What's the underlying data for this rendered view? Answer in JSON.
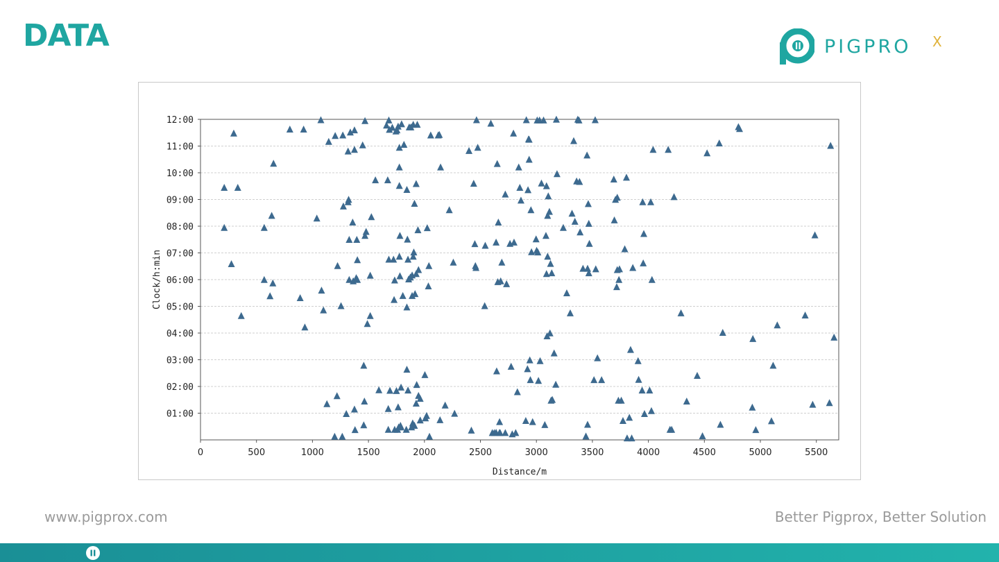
{
  "header": {
    "title": "DATA",
    "logo_text": "PIGPRO",
    "logo_superscript": "X"
  },
  "footer": {
    "website": "www.pigprox.com",
    "slogan": "Better Pigprox, Better Solution"
  },
  "colors": {
    "accent": "#1fa6a1",
    "marker": "#3d6a8f",
    "gold": "#e0b23a",
    "footer_text": "#9a9a9a"
  },
  "icons": [
    "pigprox-logo-icon",
    "pigprox-footer-icon"
  ],
  "chart_data": {
    "type": "scatter",
    "marker": "triangle",
    "xlabel": "Distance/m",
    "ylabel": "Clock/h:min",
    "xlim": [
      0,
      5700
    ],
    "ylim": [
      0,
      12
    ],
    "xticks": [
      0,
      500,
      1000,
      1500,
      2000,
      2500,
      3000,
      3500,
      4000,
      4500,
      5000,
      5500
    ],
    "yticks": [
      1,
      2,
      3,
      4,
      5,
      6,
      7,
      8,
      9,
      10,
      11,
      12
    ],
    "ytick_labels": [
      "01:00",
      "02:00",
      "03:00",
      "04:00",
      "05:00",
      "06:00",
      "07:00",
      "08:00",
      "09:00",
      "10:00",
      "11:00",
      "12:00"
    ],
    "grid_y": true,
    "grid_x": false,
    "y_unit": "hours",
    "points": [
      [
        212,
        9.43
      ],
      [
        212,
        7.93
      ],
      [
        276,
        6.57
      ],
      [
        297,
        11.46
      ],
      [
        333,
        9.43
      ],
      [
        364,
        4.63
      ],
      [
        569,
        5.98
      ],
      [
        569,
        7.93
      ],
      [
        621,
        5.37
      ],
      [
        636,
        8.38
      ],
      [
        646,
        5.85
      ],
      [
        652,
        10.33
      ],
      [
        798,
        11.61
      ],
      [
        890,
        5.3
      ],
      [
        921,
        11.61
      ],
      [
        932,
        4.2
      ],
      [
        1039,
        8.28
      ],
      [
        1075,
        11.96
      ],
      [
        1081,
        5.58
      ],
      [
        1098,
        4.84
      ],
      [
        1129,
        1.33
      ],
      [
        1145,
        11.15
      ],
      [
        1198,
        0.11
      ],
      [
        1203,
        11.37
      ],
      [
        1219,
        1.63
      ],
      [
        1224,
        6.5
      ],
      [
        1255,
        5.0
      ],
      [
        1266,
        0.11
      ],
      [
        1271,
        11.39
      ],
      [
        1276,
        8.73
      ],
      [
        1302,
        0.96
      ],
      [
        1318,
        10.79
      ],
      [
        1318,
        8.89
      ],
      [
        1323,
        8.98
      ],
      [
        1328,
        7.48
      ],
      [
        1328,
        5.98
      ],
      [
        1338,
        11.5
      ],
      [
        1359,
        8.13
      ],
      [
        1364,
        5.93
      ],
      [
        1375,
        11.58
      ],
      [
        1375,
        10.85
      ],
      [
        1375,
        1.13
      ],
      [
        1380,
        0.36
      ],
      [
        1391,
        6.05
      ],
      [
        1396,
        7.48
      ],
      [
        1401,
        6.72
      ],
      [
        1401,
        5.98
      ],
      [
        1448,
        11.02
      ],
      [
        1458,
        2.77
      ],
      [
        1458,
        0.54
      ],
      [
        1464,
        1.43
      ],
      [
        1469,
        11.93
      ],
      [
        1469,
        7.63
      ],
      [
        1479,
        7.78
      ],
      [
        1490,
        4.33
      ],
      [
        1516,
        4.63
      ],
      [
        1516,
        6.14
      ],
      [
        1526,
        8.33
      ],
      [
        1562,
        9.71
      ],
      [
        1593,
        1.85
      ],
      [
        1661,
        11.76
      ],
      [
        1672,
        9.71
      ],
      [
        1677,
        0.37
      ],
      [
        1677,
        1.15
      ],
      [
        1682,
        11.95
      ],
      [
        1682,
        6.74
      ],
      [
        1687,
        11.6
      ],
      [
        1692,
        1.83
      ],
      [
        1713,
        11.68
      ],
      [
        1724,
        6.74
      ],
      [
        1729,
        5.23
      ],
      [
        1734,
        5.96
      ],
      [
        1734,
        0.37
      ],
      [
        1745,
        11.54
      ],
      [
        1750,
        1.82
      ],
      [
        1755,
        11.58
      ],
      [
        1760,
        0.37
      ],
      [
        1765,
        11.72
      ],
      [
        1765,
        1.21
      ],
      [
        1770,
        0.46
      ],
      [
        1776,
        6.85
      ],
      [
        1776,
        10.93
      ],
      [
        1776,
        9.5
      ],
      [
        1776,
        10.19
      ],
      [
        1781,
        7.63
      ],
      [
        1781,
        6.12
      ],
      [
        1786,
        0.52
      ],
      [
        1791,
        1.95
      ],
      [
        1791,
        0.46
      ],
      [
        1796,
        11.81
      ],
      [
        1807,
        5.38
      ],
      [
        1817,
        11.04
      ],
      [
        1838,
        0.37
      ],
      [
        1843,
        4.95
      ],
      [
        1843,
        2.62
      ],
      [
        1843,
        9.35
      ],
      [
        1848,
        7.49
      ],
      [
        1853,
        6.74
      ],
      [
        1853,
        1.84
      ],
      [
        1859,
        6.0
      ],
      [
        1864,
        11.69
      ],
      [
        1874,
        6.07
      ],
      [
        1879,
        11.69
      ],
      [
        1885,
        0.46
      ],
      [
        1890,
        5.38
      ],
      [
        1890,
        6.15
      ],
      [
        1895,
        0.61
      ],
      [
        1900,
        6.85
      ],
      [
        1900,
        11.79
      ],
      [
        1905,
        7.01
      ],
      [
        1911,
        0.52
      ],
      [
        1911,
        8.83
      ],
      [
        1916,
        5.45
      ],
      [
        1926,
        9.57
      ],
      [
        1926,
        6.2
      ],
      [
        1926,
        1.35
      ],
      [
        1931,
        2.05
      ],
      [
        1936,
        11.79
      ],
      [
        1942,
        7.84
      ],
      [
        1947,
        1.64
      ],
      [
        1947,
        6.35
      ],
      [
        1962,
        1.53
      ],
      [
        1962,
        0.72
      ],
      [
        2004,
        2.42
      ],
      [
        2009,
        0.8
      ],
      [
        2019,
        0.89
      ],
      [
        2025,
        7.92
      ],
      [
        2035,
        5.74
      ],
      [
        2040,
        6.5
      ],
      [
        2045,
        0.11
      ],
      [
        2056,
        11.39
      ],
      [
        2123,
        11.39
      ],
      [
        2133,
        11.41
      ],
      [
        2139,
        0.73
      ],
      [
        2144,
        10.19
      ],
      [
        2185,
        1.28
      ],
      [
        2222,
        8.59
      ],
      [
        2258,
        6.63
      ],
      [
        2269,
        0.97
      ],
      [
        2398,
        10.81
      ],
      [
        2419,
        0.34
      ],
      [
        2440,
        9.58
      ],
      [
        2450,
        7.32
      ],
      [
        2455,
        6.5
      ],
      [
        2460,
        6.43
      ],
      [
        2465,
        11.96
      ],
      [
        2476,
        10.93
      ],
      [
        2538,
        5.0
      ],
      [
        2543,
        7.26
      ],
      [
        2593,
        11.83
      ],
      [
        2606,
        0.25
      ],
      [
        2624,
        0.25
      ],
      [
        2640,
        7.38
      ],
      [
        2640,
        0.26
      ],
      [
        2645,
        2.56
      ],
      [
        2650,
        10.32
      ],
      [
        2655,
        5.9
      ],
      [
        2660,
        8.13
      ],
      [
        2670,
        0.25
      ],
      [
        2671,
        0.66
      ],
      [
        2676,
        0.25
      ],
      [
        2681,
        5.93
      ],
      [
        2691,
        6.63
      ],
      [
        2722,
        0.25
      ],
      [
        2722,
        9.18
      ],
      [
        2733,
        5.82
      ],
      [
        2764,
        7.33
      ],
      [
        2774,
        2.73
      ],
      [
        2784,
        0.2
      ],
      [
        2795,
        11.46
      ],
      [
        2800,
        7.38
      ],
      [
        2815,
        0.25
      ],
      [
        2830,
        1.78
      ],
      [
        2842,
        10.19
      ],
      [
        2852,
        9.43
      ],
      [
        2862,
        8.95
      ],
      [
        2905,
        0.7
      ],
      [
        2910,
        11.96
      ],
      [
        2920,
        2.64
      ],
      [
        2925,
        9.34
      ],
      [
        2930,
        11.24
      ],
      [
        2935,
        11.23
      ],
      [
        2935,
        10.48
      ],
      [
        2941,
        2.97
      ],
      [
        2946,
        2.23
      ],
      [
        2951,
        8.59
      ],
      [
        2956,
        7.02
      ],
      [
        2966,
        0.66
      ],
      [
        2997,
        7.5
      ],
      [
        3002,
        7.07
      ],
      [
        3007,
        11.95
      ],
      [
        3013,
        7.01
      ],
      [
        3018,
        2.2
      ],
      [
        3028,
        11.95
      ],
      [
        3033,
        2.94
      ],
      [
        3045,
        9.59
      ],
      [
        3064,
        11.95
      ],
      [
        3075,
        0.55
      ],
      [
        3085,
        7.63
      ],
      [
        3090,
        9.49
      ],
      [
        3090,
        6.2
      ],
      [
        3095,
        3.87
      ],
      [
        3100,
        6.85
      ],
      [
        3100,
        8.38
      ],
      [
        3106,
        9.11
      ],
      [
        3116,
        8.53
      ],
      [
        3121,
        3.98
      ],
      [
        3126,
        6.58
      ],
      [
        3131,
        1.46
      ],
      [
        3137,
        6.23
      ],
      [
        3142,
        1.49
      ],
      [
        3158,
        3.23
      ],
      [
        3173,
        2.06
      ],
      [
        3178,
        11.98
      ],
      [
        3184,
        9.94
      ],
      [
        3240,
        7.93
      ],
      [
        3271,
        5.48
      ],
      [
        3302,
        4.73
      ],
      [
        3318,
        8.46
      ],
      [
        3333,
        11.18
      ],
      [
        3344,
        8.16
      ],
      [
        3359,
        9.67
      ],
      [
        3369,
        11.98
      ],
      [
        3380,
        11.95
      ],
      [
        3385,
        9.65
      ],
      [
        3390,
        7.76
      ],
      [
        3416,
        6.4
      ],
      [
        3442,
        0.12
      ],
      [
        3452,
        10.64
      ],
      [
        3457,
        6.4
      ],
      [
        3457,
        0.56
      ],
      [
        3463,
        8.82
      ],
      [
        3468,
        8.08
      ],
      [
        3468,
        6.23
      ],
      [
        3473,
        7.33
      ],
      [
        3514,
        2.23
      ],
      [
        3525,
        11.96
      ],
      [
        3530,
        6.38
      ],
      [
        3545,
        3.05
      ],
      [
        3582,
        2.23
      ],
      [
        3691,
        9.74
      ],
      [
        3696,
        8.21
      ],
      [
        3706,
        8.98
      ],
      [
        3717,
        5.71
      ],
      [
        3722,
        9.06
      ],
      [
        3722,
        6.35
      ],
      [
        3732,
        1.46
      ],
      [
        3737,
        5.98
      ],
      [
        3742,
        6.38
      ],
      [
        3758,
        1.46
      ],
      [
        3773,
        0.7
      ],
      [
        3789,
        7.13
      ],
      [
        3804,
        9.81
      ],
      [
        3810,
        0.05
      ],
      [
        3830,
        0.82
      ],
      [
        3841,
        3.36
      ],
      [
        3851,
        0.05
      ],
      [
        3861,
        6.43
      ],
      [
        3908,
        2.94
      ],
      [
        3913,
        2.24
      ],
      [
        3944,
        1.84
      ],
      [
        3949,
        8.89
      ],
      [
        3954,
        6.6
      ],
      [
        3959,
        7.7
      ],
      [
        3965,
        0.96
      ],
      [
        4011,
        1.84
      ],
      [
        4021,
        8.89
      ],
      [
        4027,
        1.07
      ],
      [
        4032,
        5.98
      ],
      [
        4042,
        10.85
      ],
      [
        4177,
        10.85
      ],
      [
        4193,
        0.37
      ],
      [
        4208,
        0.37
      ],
      [
        4229,
        9.08
      ],
      [
        4291,
        4.73
      ],
      [
        4342,
        1.43
      ],
      [
        4436,
        2.39
      ],
      [
        4483,
        0.13
      ],
      [
        4524,
        10.72
      ],
      [
        4633,
        11.09
      ],
      [
        4643,
        0.56
      ],
      [
        4664,
        4.0
      ],
      [
        4804,
        11.7
      ],
      [
        4814,
        11.63
      ],
      [
        4928,
        1.2
      ],
      [
        4933,
        3.77
      ],
      [
        4959,
        0.36
      ],
      [
        5099,
        0.69
      ],
      [
        5114,
        2.77
      ],
      [
        5151,
        4.28
      ],
      [
        5400,
        4.65
      ],
      [
        5467,
        1.31
      ],
      [
        5487,
        7.65
      ],
      [
        5617,
        1.37
      ],
      [
        5627,
        11.0
      ],
      [
        5658,
        3.82
      ]
    ]
  }
}
